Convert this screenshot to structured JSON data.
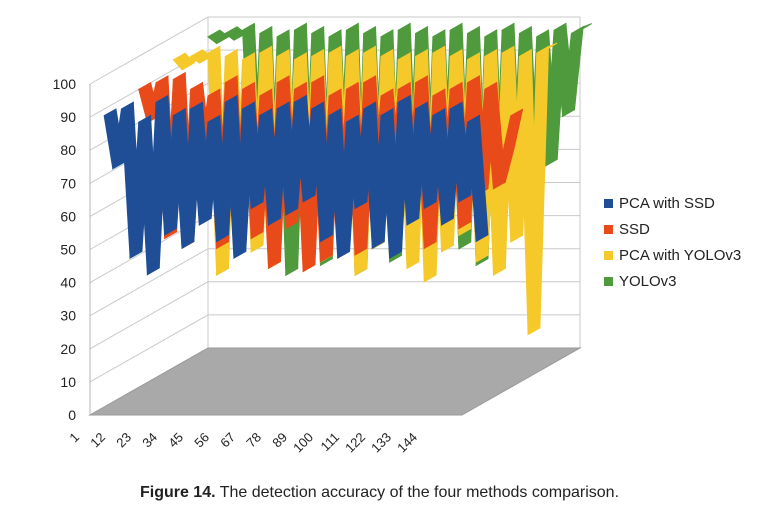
{
  "figure": {
    "caption_label": "Figure 14.",
    "caption_text": "The detection accuracy of the four methods comparison."
  },
  "chart_data": {
    "type": "area",
    "view": "3d",
    "title": "",
    "xlabel": "",
    "ylabel": "",
    "ylim": [
      0,
      100
    ],
    "yticks": [
      "0",
      "10",
      "20",
      "30",
      "40",
      "50",
      "60",
      "70",
      "80",
      "90",
      "100"
    ],
    "xticks": [
      "1",
      "12",
      "23",
      "34",
      "45",
      "56",
      "67",
      "78",
      "89",
      "100",
      "111",
      "122",
      "133",
      "144"
    ],
    "legend_position": "right",
    "series": [
      {
        "name": "PCA with SSD",
        "color": "#1f4e96",
        "values": [
          88,
          72,
          90,
          45,
          86,
          40,
          92,
          52,
          88,
          48,
          90,
          55,
          86,
          50,
          92,
          45,
          90,
          60,
          88,
          55,
          90,
          58,
          92,
          62,
          90,
          50,
          88,
          45,
          86,
          60,
          90,
          48,
          88,
          45,
          92,
          55,
          90,
          60,
          88,
          55,
          90,
          62,
          86,
          50
        ]
      },
      {
        "name": "SSD",
        "color": "#e84a1a",
        "values": [
          90,
          80,
          92,
          45,
          93,
          42,
          90,
          68,
          88,
          42,
          92,
          40,
          90,
          45,
          88,
          36,
          92,
          48,
          90,
          35,
          92,
          38,
          88,
          45,
          90,
          40,
          92,
          55,
          88,
          60,
          90,
          52,
          92,
          42,
          88,
          55,
          90,
          48,
          92,
          58,
          90,
          60,
          70,
          82
        ]
      },
      {
        "name": "PCA with YOLOv3",
        "color": "#f5c92a",
        "values": [
          93,
          90,
          94,
          92,
          95,
          28,
          94,
          40,
          93,
          35,
          95,
          30,
          94,
          45,
          93,
          38,
          94,
          32,
          95,
          40,
          94,
          28,
          95,
          36,
          94,
          42,
          93,
          30,
          94,
          26,
          95,
          35,
          94,
          40,
          93,
          32,
          94,
          28,
          95,
          38,
          94,
          10,
          95,
          96
        ]
      },
      {
        "name": "YOLOv3",
        "color": "#4e9a3c",
        "values": [
          94,
          92,
          95,
          93,
          96,
          40,
          95,
          28,
          94,
          22,
          96,
          30,
          95,
          25,
          94,
          35,
          96,
          22,
          95,
          30,
          94,
          26,
          96,
          32,
          95,
          28,
          94,
          35,
          96,
          30,
          95,
          25,
          94,
          30,
          96,
          36,
          95,
          40,
          94,
          55,
          96,
          70,
          95,
          96
        ]
      }
    ]
  }
}
